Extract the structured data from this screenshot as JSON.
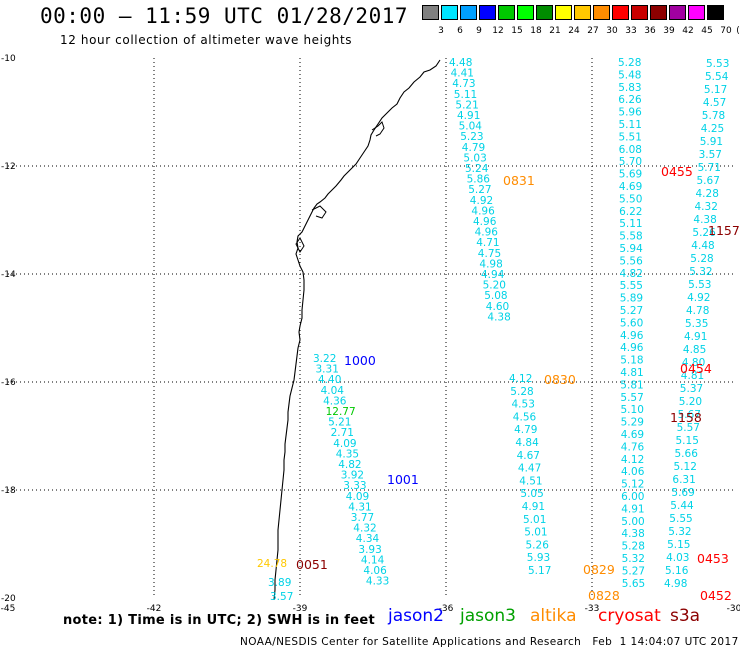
{
  "title": "00:00 – 11:59 UTC 01/28/2017",
  "subtitle": "12 hour collection of altimeter wave heights",
  "color_scale": {
    "unit_label": "(ft)",
    "labels": [
      "3",
      "6",
      "9",
      "12",
      "15",
      "18",
      "21",
      "24",
      "27",
      "30",
      "33",
      "36",
      "39",
      "42",
      "45",
      "70"
    ],
    "colors": [
      "#808080",
      "#00e5ff",
      "#00a0ff",
      "#0000ff",
      "#00c800",
      "#00ff00",
      "#008c00",
      "#ffff00",
      "#ffc800",
      "#ff8c00",
      "#ff0000",
      "#c80000",
      "#8c0000",
      "#a000a0",
      "#ff00ff",
      "#000000"
    ]
  },
  "map": {
    "lon_labels": [
      "-45",
      "-42",
      "-39",
      "-36",
      "-33",
      "-30"
    ],
    "lat_labels": [
      "-10",
      "-12",
      "-14",
      "-16",
      "-18",
      "-20"
    ]
  },
  "tracks": [
    {
      "satellite": "jason2",
      "time_label": "1000",
      "color": "#0000ff",
      "values": [
        "3.22",
        "3.31",
        "4.40",
        "4.04",
        "4.36",
        "12.77",
        "5.21",
        "2.71",
        "4.09",
        "4.35",
        "4.82",
        "3.92",
        "3.33",
        "4.09",
        "4.31",
        "3.77",
        "4.32",
        "4.34",
        "3.93",
        "4.14",
        "4.06",
        "4.33"
      ]
    },
    {
      "satellite": "jason2",
      "time_label": "1001",
      "color": "#0000ff",
      "values": []
    },
    {
      "satellite": "altika",
      "time_label": "0051",
      "color": "#8c0000",
      "values": [
        "24.78",
        "3.89",
        "3.57"
      ]
    },
    {
      "satellite": "altika",
      "time_label": "0831",
      "color": "#ff8c00",
      "values": [
        "4.48",
        "4.41",
        "4.73",
        "5.11",
        "5.21",
        "4.91",
        "5.04",
        "5.23",
        "4.79",
        "5.03",
        "5.24",
        "5.86",
        "5.27",
        "4.92",
        "4.96",
        "4.96",
        "4.96",
        "4.71",
        "4.75",
        "4.98",
        "4.94",
        "5.20",
        "5.08",
        "4.60",
        "4.38"
      ]
    },
    {
      "satellite": "altika",
      "time_label": "0830",
      "color": "#ff8c00",
      "values": [
        "4.12",
        "5.28",
        "4.53",
        "4.56",
        "4.79",
        "4.84",
        "4.67",
        "4.47",
        "4.51",
        "5.05",
        "4.91",
        "5.01",
        "5.01",
        "5.26",
        "5.93",
        "5.17"
      ]
    },
    {
      "satellite": "altika",
      "time_label": "0829",
      "color": "#ff8c00",
      "values": []
    },
    {
      "satellite": "altika",
      "time_label": "0828",
      "color": "#ff8c00",
      "values": []
    },
    {
      "satellite": "jason3",
      "time_label": "",
      "color": "#00a000",
      "values": [
        "5.28",
        "5.48",
        "5.83",
        "6.26",
        "5.96",
        "5.11",
        "5.51",
        "6.08",
        "5.70",
        "5.69",
        "4.69",
        "5.50",
        "6.22",
        "5.11",
        "5.58",
        "5.94",
        "5.56",
        "4.82",
        "5.55",
        "5.89",
        "5.27",
        "5.60",
        "4.96",
        "4.96",
        "5.18",
        "4.81",
        "5.81",
        "5.57",
        "5.10",
        "5.29",
        "4.69",
        "4.76",
        "4.12",
        "4.06",
        "5.12",
        "6.00",
        "4.91",
        "5.00",
        "4.38",
        "5.28",
        "5.32",
        "5.27",
        "5.65"
      ]
    },
    {
      "satellite": "cryosat",
      "time_label": "0455",
      "color": "#ff0000",
      "values": [
        "5.53",
        "5.54",
        "5.17",
        "4.57",
        "5.78",
        "4.25",
        "5.91",
        "3.57",
        "5.71",
        "5.67",
        "4.28",
        "4.32",
        "4.38",
        "5.26",
        "4.48",
        "5.28",
        "5.32",
        "5.53",
        "4.92",
        "4.78",
        "5.35",
        "4.91",
        "4.85",
        "4.80",
        "4.81",
        "5.37",
        "5.20",
        "5.67",
        "5.57",
        "5.15",
        "5.66",
        "5.12",
        "6.31",
        "5.69",
        "5.44",
        "5.55",
        "5.32",
        "5.15",
        "4.03",
        "5.16",
        "4.98"
      ]
    },
    {
      "satellite": "cryosat",
      "time_label": "0454",
      "color": "#ff0000",
      "values": []
    },
    {
      "satellite": "cryosat",
      "time_label": "0453",
      "color": "#ff0000",
      "values": []
    },
    {
      "satellite": "cryosat",
      "time_label": "0452",
      "color": "#ff0000",
      "values": []
    },
    {
      "satellite": "s3a",
      "time_label": "1157",
      "color": "#8c0000",
      "values": []
    },
    {
      "satellite": "s3a",
      "time_label": "1158",
      "color": "#8c0000",
      "values": []
    }
  ],
  "note": "note: 1) Time is in UTC; 2) SWH is in feet",
  "legend": [
    {
      "label": "jason2",
      "color": "#0000ff"
    },
    {
      "label": "jason3",
      "color": "#00a000"
    },
    {
      "label": "altika",
      "color": "#ff8c00"
    },
    {
      "label": "cryosat",
      "color": "#ff0000"
    },
    {
      "label": "s3a",
      "color": "#8c0000"
    }
  ],
  "footer": "NOAA/NESDIS Center for Satellite Applications and Research   Feb  1 14:04:07 UTC 2017"
}
